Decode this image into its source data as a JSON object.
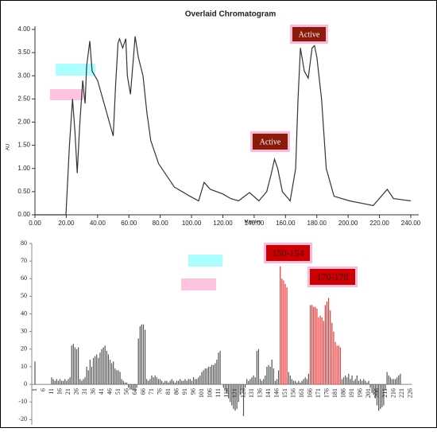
{
  "chart_data": [
    {
      "type": "line",
      "title": "Overlaid Chromatogram",
      "y_label": "AU",
      "x_label": "Minutes",
      "color": "#333333",
      "x": [
        0,
        19.8,
        22,
        24,
        25.5,
        27,
        28.5,
        30.5,
        32,
        33,
        35,
        36.5,
        40,
        45,
        50,
        51.5,
        53,
        54,
        56,
        58,
        59,
        61,
        64,
        66,
        69,
        71.5,
        74,
        79,
        89,
        99,
        104.5,
        108,
        112,
        120,
        125,
        130,
        137,
        143,
        148,
        151,
        153,
        155,
        158,
        163,
        166.5,
        168,
        169.5,
        172,
        174.5,
        177,
        178.5,
        180,
        183,
        186,
        191,
        201,
        216,
        225,
        229,
        240
      ],
      "values": [
        0,
        0,
        1.5,
        2.5,
        1.8,
        0.9,
        1.9,
        2.9,
        2.4,
        3.2,
        3.75,
        3.1,
        2.9,
        2.3,
        1.7,
        2.8,
        3.7,
        3.8,
        3.6,
        3.8,
        3.0,
        2.6,
        3.85,
        3.4,
        3.0,
        2.2,
        1.6,
        1.1,
        0.6,
        0.4,
        0.3,
        0.7,
        0.55,
        0.45,
        0.35,
        0.3,
        0.48,
        0.3,
        0.5,
        0.9,
        1.2,
        1.0,
        0.5,
        0.3,
        1.0,
        2.5,
        3.6,
        3.1,
        2.95,
        3.6,
        3.65,
        3.4,
        2.5,
        1.0,
        0.4,
        0.3,
        0.2,
        0.55,
        0.35,
        0.3
      ],
      "xlim": [
        0,
        240
      ],
      "xticks": [
        {
          "value": 0,
          "label": "0.00"
        },
        {
          "value": 20,
          "label": "20.00"
        },
        {
          "value": 40,
          "label": "40.00"
        },
        {
          "value": 60,
          "label": "60.00"
        },
        {
          "value": 80,
          "label": "80.00"
        },
        {
          "value": 100,
          "label": "100.00"
        },
        {
          "value": 120,
          "label": "120.00"
        },
        {
          "value": 140,
          "label": "140.00"
        },
        {
          "value": 160,
          "label": "160.00"
        },
        {
          "value": 180,
          "label": "180.00"
        },
        {
          "value": 200,
          "label": "200.00"
        },
        {
          "value": 220,
          "label": "220.00"
        },
        {
          "value": 240,
          "label": "240.00"
        }
      ],
      "ylim": [
        0,
        4
      ],
      "yticks": [
        {
          "value": 0,
          "label": "0.00"
        },
        {
          "value": 0.5,
          "label": "0.50"
        },
        {
          "value": 1,
          "label": "1.00"
        },
        {
          "value": 1.5,
          "label": "1.50"
        },
        {
          "value": 2,
          "label": "2.00"
        },
        {
          "value": 2.5,
          "label": "2.50"
        },
        {
          "value": 3,
          "label": "3.00"
        },
        {
          "value": 3.5,
          "label": "3.50"
        },
        {
          "value": 4,
          "label": "4.00"
        }
      ],
      "annotations": [
        "Active",
        "Active"
      ]
    },
    {
      "type": "bar",
      "categories": [
        "1",
        null,
        null,
        null,
        null,
        "6",
        null,
        null,
        null,
        null,
        "11",
        null,
        null,
        null,
        null,
        "16",
        null,
        null,
        null,
        null,
        "21",
        null,
        null,
        null,
        null,
        "26",
        null,
        null,
        null,
        null,
        "31",
        null,
        null,
        null,
        null,
        "36",
        null,
        null,
        null,
        null,
        "41",
        null,
        null,
        null,
        null,
        "46",
        null,
        null,
        null,
        null,
        "51",
        null,
        null,
        null,
        null,
        "56",
        null,
        null,
        null,
        null,
        "61",
        null,
        null,
        null,
        null,
        "66",
        null,
        null,
        null,
        null,
        "71",
        null,
        null,
        null,
        null,
        "76",
        null,
        null,
        null,
        null,
        "81",
        null,
        null,
        null,
        null,
        "86",
        null,
        null,
        null,
        null,
        "91",
        null,
        null,
        null,
        null,
        "96",
        null,
        null,
        null,
        null,
        "101",
        null,
        null,
        null,
        null,
        "106",
        null,
        null,
        null,
        null,
        "111",
        null,
        null,
        null,
        null,
        "116",
        null,
        null,
        null,
        null,
        "121",
        null,
        null,
        null,
        null,
        "126",
        null,
        null,
        null,
        null,
        "131",
        null,
        null,
        null,
        null,
        "136",
        null,
        null,
        null,
        null,
        "141",
        null,
        null,
        null,
        null,
        "146",
        null,
        null,
        null,
        null,
        "151",
        null,
        null,
        null,
        null,
        "156",
        null,
        null,
        null,
        null,
        "161",
        null,
        null,
        null,
        null,
        "166",
        null,
        null,
        null,
        null,
        "171",
        null,
        null,
        null,
        null,
        "176",
        null,
        null,
        null,
        null,
        "181",
        null,
        null,
        null,
        null,
        "186",
        null,
        null,
        null,
        null,
        "191",
        null,
        null,
        null,
        null,
        "196",
        null,
        null,
        null,
        null,
        "201",
        null,
        null,
        null,
        null,
        "206",
        null,
        null,
        null,
        null,
        "211",
        null,
        null,
        null,
        null,
        "216",
        null,
        null,
        null,
        null,
        "221",
        null,
        null,
        null,
        null,
        "226"
      ],
      "values": [
        13,
        0,
        0,
        0,
        0,
        0,
        0,
        0,
        0,
        0,
        4,
        3,
        2,
        3,
        2,
        3,
        2,
        2,
        3,
        2,
        3,
        4,
        22,
        23,
        21,
        20,
        21,
        3,
        2,
        3,
        4,
        10,
        8,
        14,
        10,
        15,
        16,
        17,
        15,
        18,
        20,
        21,
        22,
        19,
        17,
        14,
        12,
        13,
        9,
        8,
        8,
        7,
        3,
        2,
        1,
        1,
        -2,
        -3,
        -3,
        -3,
        -4,
        -2,
        26,
        33,
        34,
        34,
        31,
        3,
        2,
        3,
        5,
        4,
        5,
        4,
        3,
        3,
        2,
        1,
        2,
        2,
        1,
        2,
        3,
        2,
        1,
        2,
        2,
        3,
        2,
        2,
        3,
        2,
        3,
        3,
        2,
        4,
        3,
        3,
        4,
        5,
        7,
        8,
        9,
        9,
        10,
        10,
        11,
        11,
        12,
        14,
        18,
        19,
        0,
        -2,
        -3,
        -5,
        -8,
        -10,
        -12,
        -14,
        -15,
        -14,
        -10,
        -6,
        -3,
        -18,
        -2,
        3,
        2,
        3,
        4,
        5,
        4,
        19,
        20,
        3,
        2,
        3,
        5,
        10,
        11,
        10,
        14,
        9,
        2,
        3,
        8,
        67,
        60,
        59,
        57,
        55,
        7,
        5,
        3,
        2,
        2,
        1,
        2,
        1,
        2,
        3,
        4,
        3,
        6,
        45,
        45,
        44,
        44,
        43,
        38,
        39,
        38,
        36,
        45,
        47,
        49,
        42,
        35,
        30,
        24,
        22,
        22,
        21,
        3,
        4,
        5,
        4,
        6,
        3,
        5,
        2,
        3,
        5,
        2,
        3,
        2,
        3,
        2,
        1,
        2,
        -2,
        -5,
        -6,
        -8,
        -12,
        -15,
        -14,
        -13,
        -12,
        -3,
        7,
        5,
        4,
        3,
        3,
        3,
        4,
        5,
        6,
        0,
        0,
        0,
        0,
        0,
        0
      ],
      "colors": [
        "#555",
        "#555",
        "#555",
        "#555",
        "#555",
        "#555",
        "#555",
        "#555",
        "#555",
        "#555",
        "#555",
        "#555",
        "#555",
        "#555",
        "#555",
        "#555",
        "#555",
        "#555",
        "#555",
        "#555",
        "#555",
        "#555",
        "#555",
        "#555",
        "#555",
        "#555",
        "#555",
        "#555",
        "#555",
        "#555",
        "#555",
        "#555",
        "#555",
        "#555",
        "#555",
        "#555",
        "#555",
        "#555",
        "#555",
        "#555",
        "#555",
        "#555",
        "#555",
        "#555",
        "#555",
        "#555",
        "#555",
        "#555",
        "#555",
        "#555",
        "#555",
        "#555",
        "#555",
        "#555",
        "#555",
        "#555",
        "#555",
        "#555",
        "#555",
        "#555",
        "#555",
        "#555",
        "#555",
        "#555",
        "#555",
        "#555",
        "#555",
        "#555",
        "#555",
        "#555",
        "#555",
        "#555",
        "#555",
        "#555",
        "#555",
        "#555",
        "#555",
        "#555",
        "#555",
        "#555",
        "#555",
        "#555",
        "#555",
        "#555",
        "#555",
        "#555",
        "#555",
        "#555",
        "#555",
        "#555",
        "#555",
        "#555",
        "#555",
        "#555",
        "#555",
        "#555",
        "#555",
        "#555",
        "#555",
        "#555",
        "#555",
        "#555",
        "#555",
        "#555",
        "#555",
        "#555",
        "#555",
        "#555",
        "#555",
        "#555",
        "#555",
        "#555",
        "#555",
        "#555",
        "#555",
        "#555",
        "#555",
        "#555",
        "#555",
        "#555",
        "#555",
        "#555",
        "#555",
        "#555",
        "#555",
        "#555",
        "#555",
        "#555",
        "#555",
        "#555",
        "#555",
        "#555",
        "#555",
        "#555",
        "#555",
        "#555",
        "#555",
        "#555",
        "#555",
        "#555",
        "#555",
        "#555",
        "#555",
        "#555",
        "#555",
        "#555",
        "#555",
        "#e33",
        "#e33",
        "#e33",
        "#e33",
        "#e33",
        "#555",
        "#555",
        "#555",
        "#555",
        "#555",
        "#555",
        "#555",
        "#555",
        "#555",
        "#555",
        "#555",
        "#555",
        "#555",
        "#e33",
        "#e33",
        "#e33",
        "#e33",
        "#e33",
        "#e33",
        "#e33",
        "#e33",
        "#e33",
        "#e33",
        "#e33",
        "#e33",
        "#e33",
        "#e33",
        "#e33",
        "#e33",
        "#e33",
        "#e33",
        "#e33",
        "#555",
        "#555",
        "#555",
        "#555",
        "#555",
        "#555",
        "#555",
        "#555",
        "#555",
        "#555",
        "#555",
        "#555",
        "#555",
        "#555",
        "#555",
        "#555",
        "#555",
        "#555",
        "#555",
        "#555",
        "#555",
        "#555",
        "#555",
        "#555",
        "#555",
        "#555",
        "#555",
        "#555",
        "#555",
        "#555",
        "#555",
        "#555",
        "#555",
        "#555",
        "#555",
        "#555",
        "#555",
        "#555",
        "#555",
        "#555",
        "#555",
        "#555"
      ],
      "ylim": [
        -23,
        80
      ],
      "yticks": [
        -20,
        -10,
        0,
        10,
        20,
        30,
        40,
        50,
        60,
        70,
        80
      ],
      "annotations": [
        "150-154",
        "170-178"
      ]
    }
  ]
}
